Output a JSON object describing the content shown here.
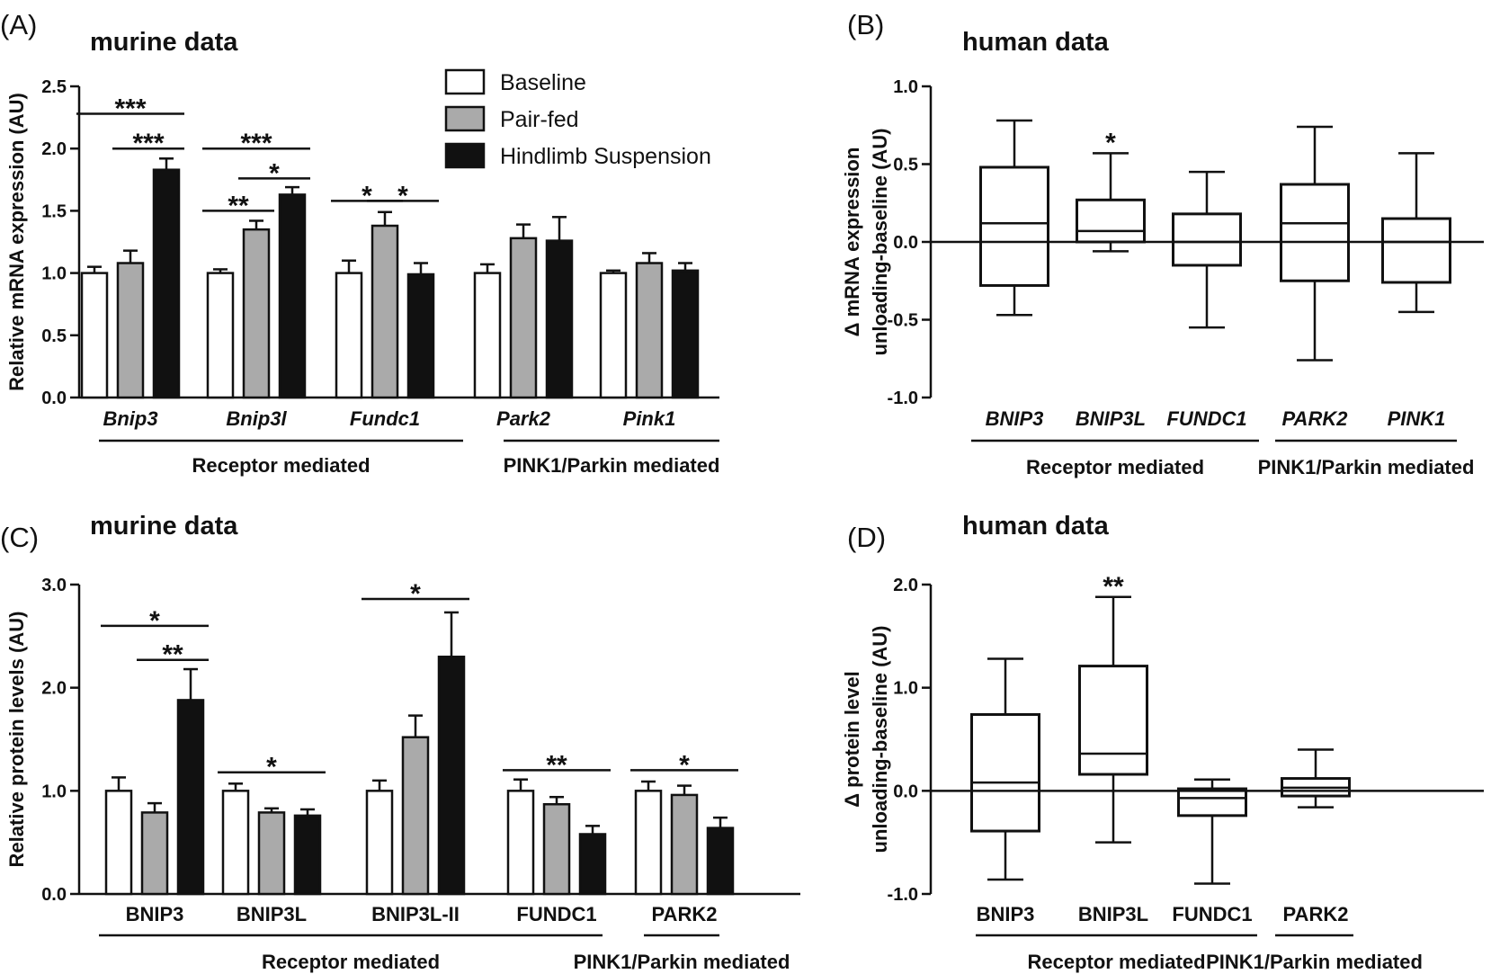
{
  "colors": {
    "baseline": "#ffffff",
    "pair_fed": "#aaaaaa",
    "hindlimb": "#111111",
    "stroke": "#111111"
  },
  "legend": [
    "Baseline",
    "Pair-fed",
    "Hindlimb Suspension"
  ],
  "chart_data": [
    {
      "id": "A",
      "panel_label": "(A)",
      "type": "bar",
      "title": "murine data",
      "ylabel": "Relative mRNA expression (AU)",
      "ylim": [
        0,
        2.5
      ],
      "yticks": [
        "0.0",
        "0.5",
        "1.0",
        "1.5",
        "2.0",
        "2.5"
      ],
      "categories": [
        "Bnip3",
        "Bnip3l",
        "Fundc1",
        "Park2",
        "Pink1"
      ],
      "italic_categories": true,
      "series": [
        {
          "name": "Baseline",
          "values": [
            1.0,
            1.0,
            1.0,
            1.0,
            1.0
          ],
          "errors": [
            0.05,
            0.03,
            0.1,
            0.07,
            0.02
          ]
        },
        {
          "name": "Pair-fed",
          "values": [
            1.08,
            1.35,
            1.38,
            1.28,
            1.08
          ],
          "errors": [
            0.1,
            0.07,
            0.11,
            0.11,
            0.08
          ]
        },
        {
          "name": "Hindlimb Suspension",
          "values": [
            1.83,
            1.63,
            0.99,
            1.26,
            1.02
          ],
          "errors": [
            0.09,
            0.06,
            0.09,
            0.19,
            0.06
          ]
        }
      ],
      "significance": [
        {
          "cat": 0,
          "from": 0,
          "to": 2,
          "y": 2.28,
          "label": "***"
        },
        {
          "cat": 0,
          "from": 1,
          "to": 2,
          "y": 2.0,
          "label": "***"
        },
        {
          "cat": 1,
          "from": 0,
          "to": 2,
          "y": 2.0,
          "label": "***"
        },
        {
          "cat": 1,
          "from": 1,
          "to": 2,
          "y": 1.76,
          "label": "*"
        },
        {
          "cat": 1,
          "from": 0,
          "to": 1,
          "y": 1.5,
          "label": "**"
        },
        {
          "cat": 2,
          "from": 0,
          "to": 1,
          "y": 1.58,
          "label": "*"
        },
        {
          "cat": 2,
          "from": 1,
          "to": 2,
          "y": 1.58,
          "label": "*"
        }
      ],
      "groups": [
        {
          "label": "Receptor mediated",
          "from": 0,
          "to": 2
        },
        {
          "label": "PINK1/Parkin mediated",
          "from": 3,
          "to": 4
        }
      ]
    },
    {
      "id": "B",
      "panel_label": "(B)",
      "type": "box",
      "title": "human data",
      "ylabel_lines": [
        "Δ mRNA expression",
        "unloading-baseline (AU)"
      ],
      "ylim": [
        -1.0,
        1.0
      ],
      "yticks": [
        "-1.0",
        "-0.5",
        "0.0",
        "0.5",
        "1.0"
      ],
      "categories": [
        "BNIP3",
        "BNIP3L",
        "FUNDC1",
        "PARK2",
        "PINK1"
      ],
      "italic_categories": true,
      "boxes": [
        {
          "min": -0.47,
          "q1": -0.28,
          "median": 0.12,
          "q3": 0.48,
          "max": 0.78
        },
        {
          "min": -0.06,
          "q1": 0.0,
          "median": 0.07,
          "q3": 0.27,
          "max": 0.57
        },
        {
          "min": -0.55,
          "q1": -0.15,
          "median": 0.0,
          "q3": 0.18,
          "max": 0.45
        },
        {
          "min": -0.76,
          "q1": -0.25,
          "median": 0.12,
          "q3": 0.37,
          "max": 0.74
        },
        {
          "min": -0.45,
          "q1": -0.26,
          "median": 0.0,
          "q3": 0.15,
          "max": 0.57
        }
      ],
      "significance": [
        {
          "cat": 1,
          "label": "*"
        }
      ],
      "groups": [
        {
          "label": "Receptor mediated",
          "from": 0,
          "to": 2
        },
        {
          "label": "PINK1/Parkin mediated",
          "from": 3,
          "to": 4
        }
      ]
    },
    {
      "id": "C",
      "panel_label": "(C)",
      "type": "bar",
      "title": "murine data",
      "ylabel": "Relative protein levels (AU)",
      "ylim": [
        0,
        3.0
      ],
      "yticks": [
        "0.0",
        "1.0",
        "2.0",
        "3.0"
      ],
      "categories": [
        "BNIP3",
        "BNIP3L",
        "BNIP3L-II",
        "FUNDC1",
        "PARK2"
      ],
      "italic_categories": false,
      "series": [
        {
          "name": "Baseline",
          "values": [
            1.0,
            1.0,
            1.0,
            1.0,
            1.0
          ],
          "errors": [
            0.13,
            0.07,
            0.1,
            0.11,
            0.09
          ]
        },
        {
          "name": "Pair-fed",
          "values": [
            0.79,
            0.79,
            1.52,
            0.87,
            0.96
          ],
          "errors": [
            0.09,
            0.04,
            0.21,
            0.07,
            0.09
          ]
        },
        {
          "name": "Hindlimb Suspension",
          "values": [
            1.88,
            0.76,
            2.3,
            0.58,
            0.64
          ],
          "errors": [
            0.3,
            0.06,
            0.43,
            0.08,
            0.1
          ]
        }
      ],
      "significance": [
        {
          "cat": 0,
          "from": 0,
          "to": 2,
          "y": 2.6,
          "label": "*"
        },
        {
          "cat": 0,
          "from": 1,
          "to": 2,
          "y": 2.27,
          "label": "**"
        },
        {
          "cat": 1,
          "from": 0,
          "to": 2,
          "y": 1.18,
          "label": "*"
        },
        {
          "cat": 2,
          "from": 0,
          "to": 2,
          "y": 2.86,
          "label": "*"
        },
        {
          "cat": 3,
          "from": 0,
          "to": 2,
          "y": 1.2,
          "label": "**"
        },
        {
          "cat": 4,
          "from": 0,
          "to": 2,
          "y": 1.2,
          "label": "*"
        }
      ],
      "groups": [
        {
          "label": "Receptor mediated",
          "from": 0,
          "to": 3
        },
        {
          "label": "PINK1/Parkin mediated",
          "from": 4,
          "to": 4
        }
      ]
    },
    {
      "id": "D",
      "panel_label": "(D)",
      "type": "box",
      "title": "human data",
      "ylabel_lines": [
        "Δ protein level",
        "unloading-baseline (AU)"
      ],
      "ylim": [
        -1.0,
        2.0
      ],
      "yticks": [
        "-1.0",
        "0.0",
        "1.0",
        "2.0"
      ],
      "categories": [
        "BNIP3",
        "BNIP3L",
        "FUNDC1",
        "PARK2"
      ],
      "italic_categories": false,
      "boxes": [
        {
          "min": -0.86,
          "q1": -0.39,
          "median": 0.08,
          "q3": 0.74,
          "max": 1.28
        },
        {
          "min": -0.5,
          "q1": 0.16,
          "median": 0.36,
          "q3": 1.21,
          "max": 1.88
        },
        {
          "min": -0.9,
          "q1": -0.24,
          "median": -0.07,
          "q3": 0.02,
          "max": 0.11
        },
        {
          "min": -0.16,
          "q1": -0.05,
          "median": 0.03,
          "q3": 0.12,
          "max": 0.4
        }
      ],
      "significance": [
        {
          "cat": 1,
          "label": "**"
        }
      ],
      "groups": [
        {
          "label": "Receptor mediated",
          "from": 0,
          "to": 2
        },
        {
          "label": "PINK1/Parkin mediated",
          "from": 3,
          "to": 3
        }
      ]
    }
  ]
}
